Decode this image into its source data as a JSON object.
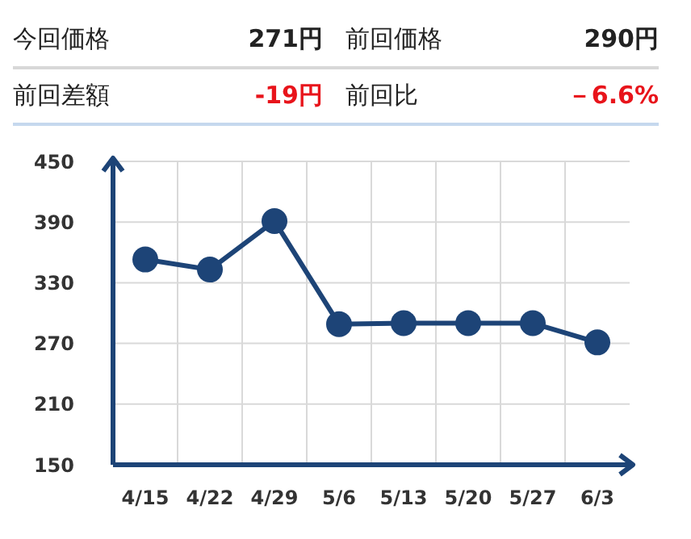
{
  "chart_data": {
    "type": "line",
    "annotations": [
      "今回価格",
      "271円",
      "前回価格",
      "290円",
      "前回差額",
      "-19円",
      "前回比",
      "－6.6%"
    ],
    "categories": [
      "4/15",
      "4/22",
      "4/29",
      "5/6",
      "5/13",
      "5/20",
      "5/27",
      "6/3"
    ],
    "series": [
      {
        "color": "#1d4477",
        "values": [
          353,
          343,
          391,
          289,
          290,
          290,
          290,
          271
        ]
      }
    ],
    "ylim": [
      150,
      450
    ],
    "yticks": [
      150,
      210,
      270,
      330,
      390,
      450
    ],
    "grid": true,
    "marker": "circle",
    "line_style": "solid"
  }
}
